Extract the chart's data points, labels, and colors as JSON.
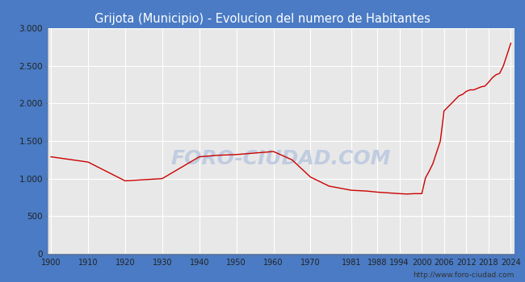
{
  "title": "Grijota (Municipio) - Evolucion del numero de Habitantes",
  "title_bg_color": "#4a7bc4",
  "title_text_color": "#ffffff",
  "line_color": "#cc0000",
  "fig_bg_color": "#4a7bc4",
  "plot_bg_color": "#e8e8e8",
  "grid_color": "#ffffff",
  "watermark_text": "FORO-CIUDAD.COM",
  "watermark_color": "#c0cce0",
  "url_text": "http://www.foro-ciudad.com",
  "years": [
    1900,
    1910,
    1920,
    1930,
    1940,
    1945,
    1950,
    1955,
    1960,
    1965,
    1970,
    1975,
    1981,
    1985,
    1988,
    1991,
    1994,
    1996,
    1998,
    2000,
    2001,
    2002,
    2003,
    2004,
    2005,
    2006,
    2007,
    2008,
    2009,
    2010,
    2011,
    2012,
    2013,
    2014,
    2015,
    2016,
    2017,
    2018,
    2019,
    2020,
    2021,
    2022,
    2023,
    2024
  ],
  "population": [
    1290,
    1220,
    970,
    1000,
    1290,
    1310,
    1320,
    1340,
    1360,
    1250,
    1020,
    900,
    845,
    835,
    820,
    810,
    800,
    795,
    800,
    800,
    1010,
    1100,
    1200,
    1350,
    1500,
    1900,
    1950,
    2000,
    2050,
    2100,
    2120,
    2160,
    2180,
    2180,
    2200,
    2220,
    2230,
    2280,
    2340,
    2380,
    2400,
    2500,
    2650,
    2800
  ],
  "xtick_labels": [
    "1900",
    "1910",
    "1920",
    "1930",
    "1940",
    "1950",
    "1960",
    "1970",
    "1981",
    "1988",
    "1994",
    "2000",
    "2006",
    "2012",
    "2018",
    "2024"
  ],
  "xtick_positions": [
    1900,
    1910,
    1920,
    1930,
    1940,
    1950,
    1960,
    1970,
    1981,
    1988,
    1994,
    2000,
    2006,
    2012,
    2018,
    2024
  ],
  "ytick_labels": [
    "0",
    "500",
    "1.000",
    "1.500",
    "2.000",
    "2.500",
    "3.000"
  ],
  "ytick_values": [
    0,
    500,
    1000,
    1500,
    2000,
    2500,
    3000
  ],
  "ylim": [
    0,
    3000
  ],
  "xlim": [
    1899,
    2025
  ]
}
